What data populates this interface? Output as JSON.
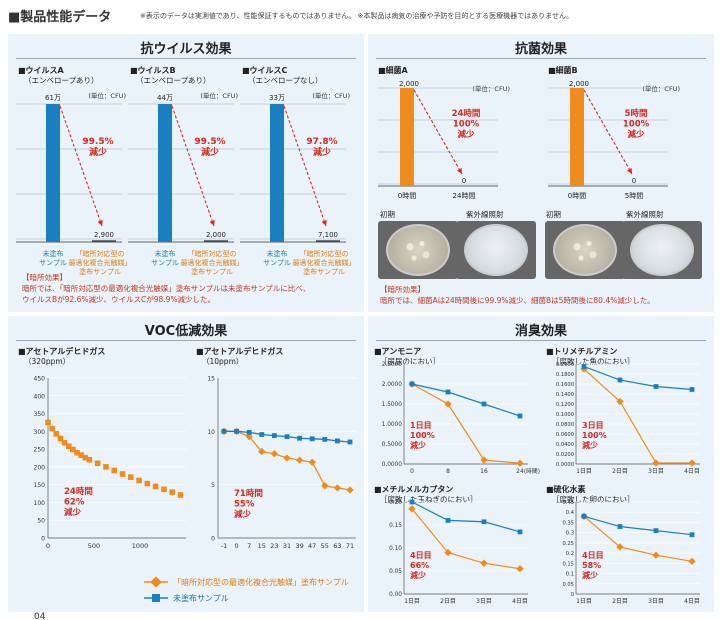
{
  "header": {
    "title": "■製品性能データ",
    "note": "※表示のデータは実測値であり、性能保証するものではありません。 ※本製品は病気の治療や予防を目的とする医療機器ではありません。"
  },
  "colors": {
    "panel_bg": "#eaf3fa",
    "blue": "#1a7fc1",
    "orange": "#f08c1e",
    "red": "#d7281e"
  },
  "antivirus": {
    "title": "抗ウイルス効果",
    "note_title": "【暗所効果】",
    "note_lines": [
      "暗所では、「暗所対応型の最適化複合光触媒」塗布サンプルは未塗布サンプルに比べ、",
      "ウイルスBが92.6%減少、ウイルスCが98.9%減少した。"
    ]
  },
  "antibacterial": {
    "title": "抗菌効果",
    "photo_before": "初期",
    "photo_after": "紫外線照射",
    "note_title": "【暗所効果】",
    "note_lines": [
      "暗所では、細菌Aは24時間後に99.9%減少、細菌Bは5時間後に80.4%減少した。"
    ]
  },
  "voc": {
    "title": "VOC低減効果"
  },
  "deodor": {
    "title": "消臭効果"
  },
  "legend": {
    "coated": "「暗所対応型の最適化複合光触媒」塗布サンプル",
    "uncoated": "未塗布サンプル"
  },
  "page_number": "04",
  "chart_data": [
    {
      "type": "bar",
      "title": "■ウイルスA",
      "subtitle": "（エンベロープあり）",
      "unit": "(単位：CFU)",
      "categories": [
        "未塗布サンプル",
        "「暗所対応型の最適化複合光触媒」塗布サンプル"
      ],
      "category_labels": [
        [
          "未塗布",
          "サンプル"
        ],
        [
          "「暗所対応型の",
          "最適化複合光触媒」",
          "塗布サンプル"
        ]
      ],
      "values": [
        610000,
        2900
      ],
      "value_labels": [
        "61万",
        "2,900"
      ],
      "reduction": [
        "99.5%",
        "減少"
      ]
    },
    {
      "type": "bar",
      "title": "■ウイルスB",
      "subtitle": "（エンベロープあり）",
      "unit": "(単位：CFU)",
      "categories": [
        "未塗布サンプル",
        "「暗所対応型の最適化複合光触媒」塗布サンプル"
      ],
      "category_labels": [
        [
          "未塗布",
          "サンプル"
        ],
        [
          "「暗所対応型の",
          "最適化複合光触媒」",
          "塗布サンプル"
        ]
      ],
      "values": [
        440000,
        2000
      ],
      "value_labels": [
        "44万",
        "2,000"
      ],
      "reduction": [
        "99.5%",
        "減少"
      ]
    },
    {
      "type": "bar",
      "title": "■ウイルスC",
      "subtitle": "（エンベロープなし）",
      "unit": "(単位：CFU)",
      "categories": [
        "未塗布サンプル",
        "「暗所対応型の最適化複合光触媒」塗布サンプル"
      ],
      "category_labels": [
        [
          "未塗布",
          "サンプル"
        ],
        [
          "「暗所対応型の",
          "最適化複合光触媒」",
          "塗布サンプル"
        ]
      ],
      "values": [
        330000,
        7100
      ],
      "value_labels": [
        "33万",
        "7,100"
      ],
      "reduction": [
        "97.8%",
        "減少"
      ]
    },
    {
      "type": "bar",
      "title": "■細菌A",
      "unit": "(単位：CFU)",
      "categories": [
        "0時間",
        "24時間"
      ],
      "values": [
        2000,
        0
      ],
      "value_labels": [
        "2,000",
        "0"
      ],
      "reduction": [
        "24時間",
        "100%",
        "減少"
      ]
    },
    {
      "type": "bar",
      "title": "■細菌B",
      "unit": "(単位：CFU)",
      "categories": [
        "0時間",
        "5時間"
      ],
      "values": [
        2000,
        0
      ],
      "value_labels": [
        "2,000",
        "0"
      ],
      "reduction": [
        "5時間",
        "100%",
        "減少"
      ]
    },
    {
      "type": "scatter",
      "title": "■アセトアルデヒドガス",
      "subtitle": "（320ppm）",
      "xlim": [
        0,
        1500
      ],
      "ylim": [
        0,
        450
      ],
      "xticks": [
        0,
        500,
        1000
      ],
      "yticks": [
        0,
        50,
        100,
        150,
        200,
        250,
        300,
        350,
        400,
        450
      ],
      "series": [
        {
          "name": "「暗所対応型の最適化複合光触媒」塗布サンプル",
          "x": [
            0,
            45,
            90,
            135,
            180,
            225,
            270,
            315,
            360,
            405,
            450,
            540,
            630,
            720,
            810,
            900,
            990,
            1080,
            1170,
            1260,
            1350,
            1440
          ],
          "y": [
            325,
            308,
            293,
            280,
            268,
            258,
            249,
            240,
            233,
            226,
            220,
            210,
            200,
            190,
            180,
            171,
            162,
            153,
            145,
            137,
            129,
            121
          ]
        }
      ],
      "reduction": [
        "24時間",
        "62%",
        "減少"
      ]
    },
    {
      "type": "line",
      "title": "■アセトアルデヒドガス",
      "subtitle": "（10ppm）",
      "categories": [
        "-1",
        "0",
        "7",
        "15",
        "23",
        "31",
        "39",
        "47",
        "55",
        "63",
        "71"
      ],
      "ylim": [
        0,
        15
      ],
      "yticks": [
        0,
        5,
        10,
        15
      ],
      "series": [
        {
          "name": "「暗所対応型の最適化複合光触媒」塗布サンプル",
          "values": [
            10,
            10,
            9.5,
            8.1,
            7.9,
            7.5,
            7.3,
            7.1,
            4.9,
            4.7,
            4.5
          ]
        },
        {
          "name": "未塗布サンプル",
          "values": [
            10,
            10,
            9.9,
            9.7,
            9.6,
            9.5,
            9.35,
            9.3,
            9.25,
            9.1,
            9.0
          ]
        }
      ],
      "reduction": [
        "71時間",
        "55%",
        "減少"
      ]
    },
    {
      "type": "line",
      "title": "■アンモニア",
      "subtitle": "［尿尿のにおい］",
      "categories": [
        "0",
        "8",
        "16",
        "24"
      ],
      "x_suffix": "(時間)",
      "ylim": [
        0,
        2.5
      ],
      "yticks": [
        "0.0000",
        "0.5000",
        "1.0000",
        "1.5000",
        "2.0000",
        "2.5000"
      ],
      "series": [
        {
          "name": "「暗所対応型の最適化複合光触媒」塗布サンプル",
          "x": [
            0,
            8,
            16,
            24
          ],
          "values": [
            2.0,
            1.5,
            0.1,
            0.02
          ]
        },
        {
          "name": "未塗布サンプル",
          "x": [
            0,
            8,
            16,
            24
          ],
          "values": [
            2.0,
            1.8,
            1.5,
            1.2
          ]
        }
      ],
      "reduction": [
        "1日目",
        "100%",
        "減少"
      ]
    },
    {
      "type": "line",
      "title": "■トリメチルアミン",
      "subtitle": "［腐敗した魚のにおい］",
      "categories": [
        "1日目",
        "2日目",
        "3日目",
        "4日目"
      ],
      "ylim": [
        0,
        0.2
      ],
      "yticks": [
        "0.0000",
        "0.0200",
        "0.0400",
        "0.0600",
        "0.0800",
        "0.1000",
        "0.1200",
        "0.1400",
        "0.1600",
        "0.1800",
        "0.2000"
      ],
      "series": [
        {
          "name": "「暗所対応型の最適化複合光触媒」塗布サンプル",
          "values": [
            0.19,
            0.125,
            0.002,
            0.002
          ]
        },
        {
          "name": "未塗布サンプル",
          "values": [
            0.195,
            0.168,
            0.155,
            0.149
          ]
        }
      ],
      "reduction": [
        "3日目",
        "100%",
        "減少"
      ]
    },
    {
      "type": "line",
      "title": "■メチルメルカプタン",
      "subtitle": "［腐敗した玉ねぎのにおい］",
      "categories": [
        "1日目",
        "2日目",
        "3日目",
        "4日目"
      ],
      "ylim": [
        0,
        0.2
      ],
      "yticks": [
        "0.00",
        "0.05",
        "0.10",
        "0.15",
        "0.20"
      ],
      "series": [
        {
          "name": "「暗所対応型の最適化複合光触媒」塗布サンプル",
          "values": [
            0.185,
            0.09,
            0.067,
            0.055
          ]
        },
        {
          "name": "未塗布サンプル",
          "values": [
            0.2,
            0.16,
            0.157,
            0.135
          ]
        }
      ],
      "reduction": [
        "4日目",
        "66%",
        "減少"
      ]
    },
    {
      "type": "line",
      "title": "■硫化水素",
      "subtitle": "［腐敗した卵のにおい］",
      "categories": [
        "1日目",
        "2日目",
        "3日目",
        "4日目"
      ],
      "ylim": [
        0,
        0.45
      ],
      "yticks": [
        "0",
        "0.05",
        "0.1",
        "0.15",
        "0.2",
        "0.25",
        "0.3",
        "0.35",
        "0.4",
        "0.45"
      ],
      "series": [
        {
          "name": "「暗所対応型の最適化複合光触媒」塗布サンプル",
          "values": [
            0.38,
            0.23,
            0.19,
            0.16
          ]
        },
        {
          "name": "未塗布サンプル",
          "values": [
            0.38,
            0.33,
            0.31,
            0.29
          ]
        }
      ],
      "reduction": [
        "4日目",
        "58%",
        "減少"
      ]
    }
  ]
}
